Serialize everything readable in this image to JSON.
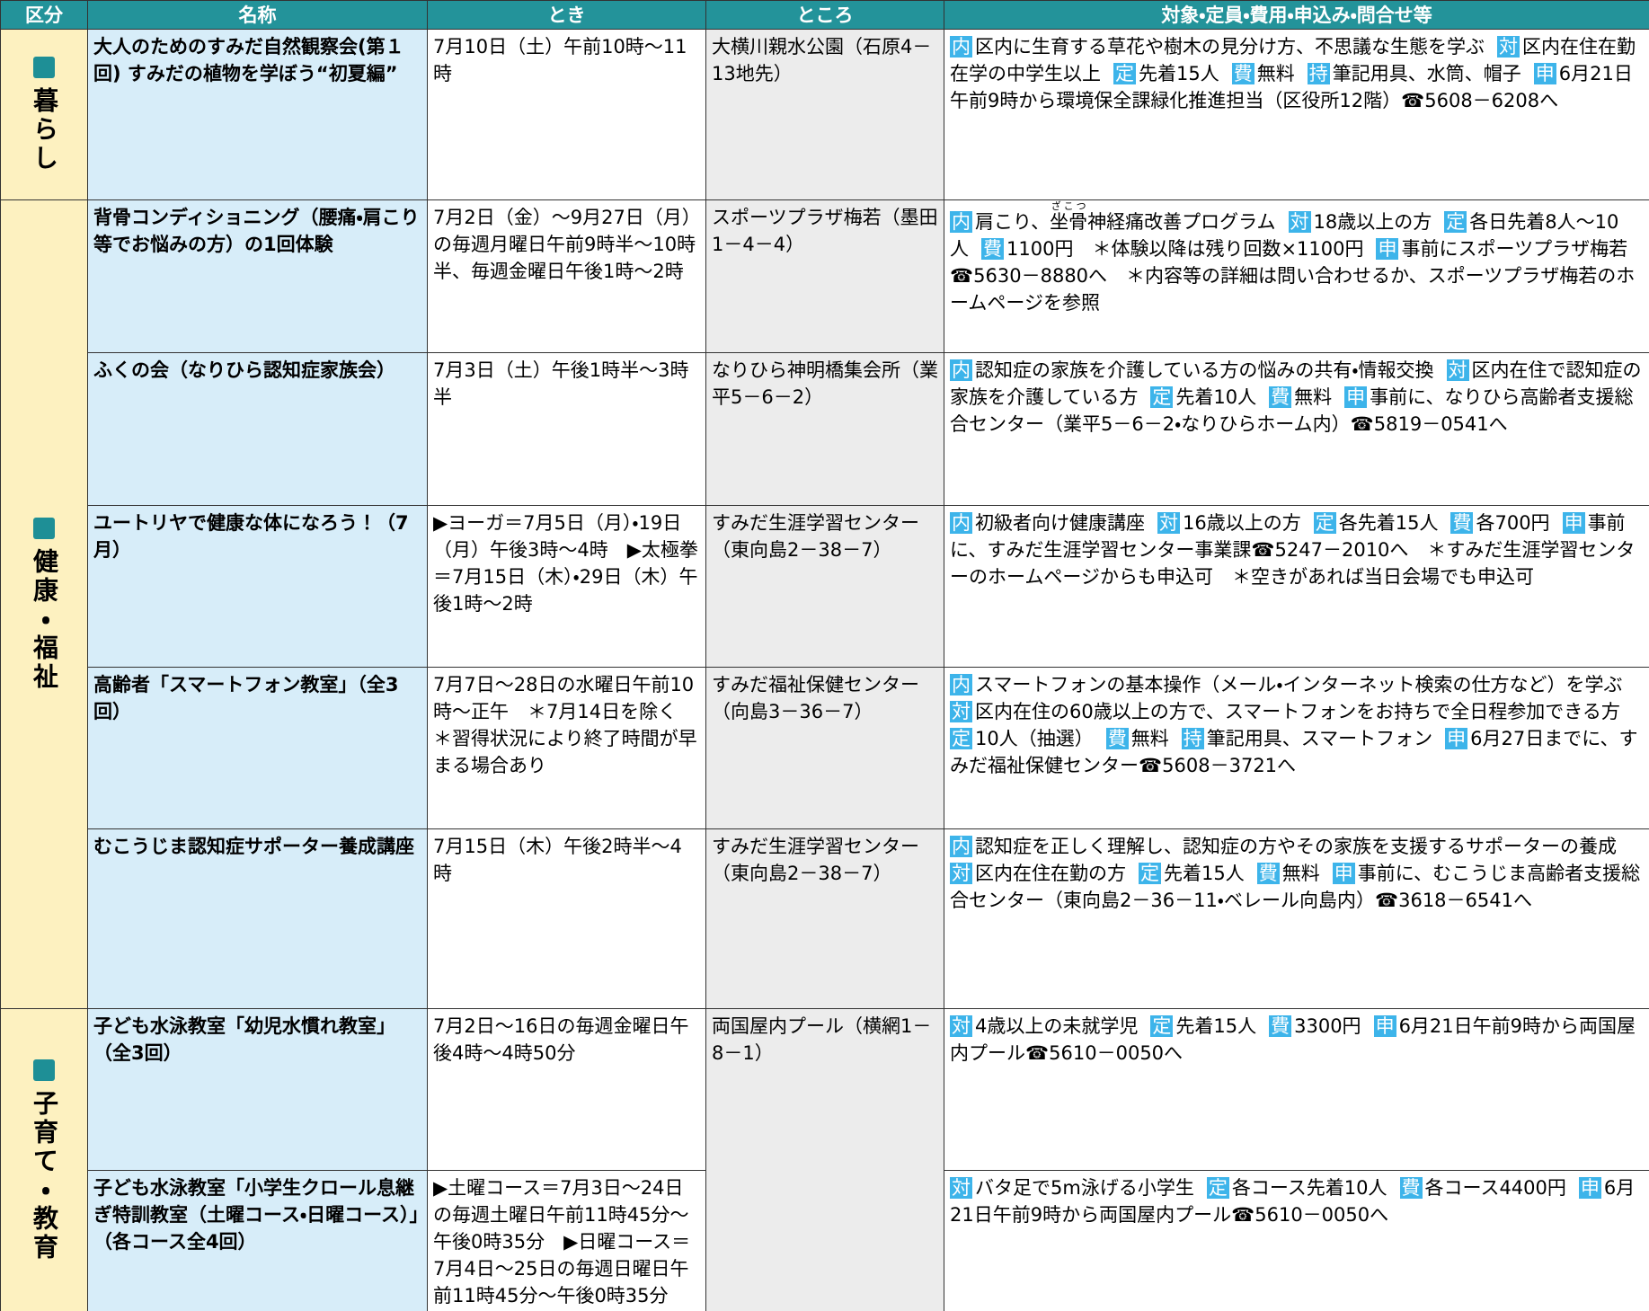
{
  "table": {
    "header": [
      "区分",
      "名称",
      "とき",
      "ところ",
      "対象・定員・費用・申込み・問合せ等"
    ],
    "sections": [
      {
        "label": "暮らし",
        "rows": [
          {
            "name": "大人のためのすみだ自然観察会(第１回) すみだの植物を学ぼう“初夏編”",
            "time": "7月10日（土）午前10時～11時",
            "place": "大横川親水公園（石原4－13地先）",
            "details": [
              {
                "tag": "内",
                "text": "区内に生育する草花や樹木の見分け方、不思議な生態を学ぶ"
              },
              {
                "tag": "対",
                "text": "区内在住在勤在学の中学生以上"
              },
              {
                "tag": "定",
                "text": "先着15人"
              },
              {
                "tag": "費",
                "text": "無料"
              },
              {
                "tag": "持",
                "text": "筆記用具、水筒、帽子"
              },
              {
                "tag": "申",
                "text": "6月21日午前9時から環境保全課緑化推進担当（区役所12階）☎5608－6208へ"
              }
            ]
          }
        ]
      },
      {
        "label": "健康・福祉",
        "rows": [
          {
            "name": "背骨コンディショニング（腰痛・肩こり等でお悩みの方）の1回体験",
            "time": "7月2日（金）～9月27日（月）の毎週月曜日午前9時半～10時半、毎週金曜日午後1時～2時",
            "place": "スポーツプラザ梅若（墨田1－4－4）",
            "details": [
              {
                "tag": "内",
                "text": "肩こり、",
                "ruby_base": "坐骨",
                "ruby": "ざこつ",
                "text_after": "神経痛改善プログラム"
              },
              {
                "tag": "対",
                "text": "18歳以上の方"
              },
              {
                "tag": "定",
                "text": "各日先着8人～10人"
              },
              {
                "tag": "費",
                "text": "1100円　＊体験以降は残り回数×1100円"
              },
              {
                "tag": "申",
                "text": "事前にスポーツプラザ梅若☎5630－8880へ　＊内容等の詳細は問い合わせるか、スポーツプラザ梅若のホームページを参照"
              }
            ]
          },
          {
            "name": "ふくの会（なりひら認知症家族会）",
            "time": "7月3日（土）午後1時半～3時半",
            "place": "なりひら神明橋集会所（業平5－6－2）",
            "details": [
              {
                "tag": "内",
                "text": "認知症の家族を介護している方の悩みの共有・情報交換"
              },
              {
                "tag": "対",
                "text": "区内在住で認知症の家族を介護している方"
              },
              {
                "tag": "定",
                "text": "先着10人"
              },
              {
                "tag": "費",
                "text": "無料"
              },
              {
                "tag": "申",
                "text": "事前に、なりひら高齢者支援総合センター（業平5－6－2・なりひらホーム内）☎5819－0541へ"
              }
            ]
          },
          {
            "name": "ユートリヤで健康な体になろう！（7月）",
            "time": "▶ヨーガ＝7月5日（月）・19日（月）午後3時～4時　▶太極拳＝7月15日（木）・29日（木）午後1時～2時",
            "place": "すみだ生涯学習センター（東向島2－38－7）",
            "details": [
              {
                "tag": "内",
                "text": "初級者向け健康講座"
              },
              {
                "tag": "対",
                "text": "16歳以上の方"
              },
              {
                "tag": "定",
                "text": "各先着15人"
              },
              {
                "tag": "費",
                "text": "各700円"
              },
              {
                "tag": "申",
                "text": "事前に、すみだ生涯学習センター事業課☎5247－2010へ　＊すみだ生涯学習センターのホームページからも申込可　＊空きがあれば当日会場でも申込可"
              }
            ]
          },
          {
            "name": "高齢者「スマートフォン教室」（全3回）",
            "time": "7月7日～28日の水曜日午前10時～正午　＊7月14日を除く　＊習得状況により終了時間が早まる場合あり",
            "place": "すみだ福祉保健センター（向島3－36－7）",
            "details": [
              {
                "tag": "内",
                "text": "スマートフォンの基本操作（メール・インターネット検索の仕方など）を学ぶ"
              },
              {
                "tag": "対",
                "text": "区内在住の60歳以上の方で、スマートフォンをお持ちで全日程参加できる方"
              },
              {
                "tag": "定",
                "text": "10人（抽選）"
              },
              {
                "tag": "費",
                "text": "無料"
              },
              {
                "tag": "持",
                "text": "筆記用具、スマートフォン"
              },
              {
                "tag": "申",
                "text": "6月27日までに、すみだ福祉保健センター☎5608－3721へ"
              }
            ]
          },
          {
            "name": "むこうじま認知症サポーター養成講座",
            "time": "7月15日（木）午後2時半～4時",
            "place": "すみだ生涯学習センター（東向島2－38－7）",
            "details": [
              {
                "tag": "内",
                "text": "認知症を正しく理解し、認知症の方やその家族を支援するサポーターの養成"
              },
              {
                "tag": "対",
                "text": "区内在住在勤の方"
              },
              {
                "tag": "定",
                "text": "先着15人"
              },
              {
                "tag": "費",
                "text": "無料"
              },
              {
                "tag": "申",
                "text": "事前に、むこうじま高齢者支援総合センター（東向島2－36－11・ベレール向島内）☎3618－6541へ"
              }
            ]
          }
        ]
      },
      {
        "label": "子育て・教育",
        "rows": [
          {
            "name": "子ども水泳教室「幼児水慣れ教室」（全3回）",
            "time": "7月2日～16日の毎週金曜日午後4時～4時50分",
            "place": "両国屋内プール（横網1－8－1）",
            "details": [
              {
                "tag": "対",
                "text": "4歳以上の未就学児"
              },
              {
                "tag": "定",
                "text": "先着15人"
              },
              {
                "tag": "費",
                "text": "3300円"
              },
              {
                "tag": "申",
                "text": "6月21日午前9時から両国屋内プール☎5610－0050へ"
              }
            ]
          },
          {
            "name": "子ども水泳教室「小学生クロール息継ぎ特訓教室（土曜コース・日曜コース）」（各コース全4回）",
            "time": "▶土曜コース＝7月3日～24日の毎週土曜日午前11時45分～午後0時35分　▶日曜コース＝7月4日～25日の毎週日曜日午前11時45分～午後0時35分",
            "details": [
              {
                "tag": "対",
                "text": "バタ足で5m泳げる小学生"
              },
              {
                "tag": "定",
                "text": "各コース先着10人"
              },
              {
                "tag": "費",
                "text": "各コース4400円"
              },
              {
                "tag": "申",
                "text": "6月21日午前9時から両国屋内プール☎5610－0050へ"
              }
            ]
          }
        ]
      }
    ]
  }
}
